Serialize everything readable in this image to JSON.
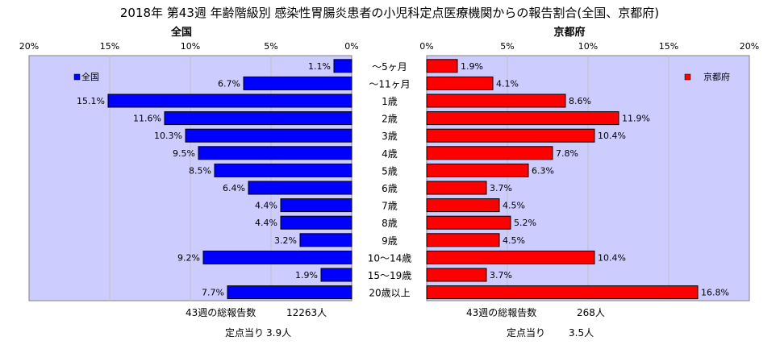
{
  "chart_data": {
    "type": "bar",
    "title": "2018年 第43週 年齢階級別 感染性胃腸炎患者の小児科定点医療機関からの報告割合(全国、京都府)",
    "categories": [
      "～5ヶ月",
      "～11ヶ月",
      "1歳",
      "2歳",
      "3歳",
      "4歳",
      "5歳",
      "6歳",
      "7歳",
      "8歳",
      "9歳",
      "10～14歳",
      "15～19歳",
      "20歳以上"
    ],
    "xlim": [
      0,
      20
    ],
    "axis_ticks": [
      "0%",
      "5%",
      "10%",
      "15%",
      "20%"
    ],
    "grid": true,
    "panels": [
      {
        "side": "left",
        "header": "全国",
        "series": [
          {
            "name": "全国",
            "values": [
              1.1,
              6.7,
              15.1,
              11.6,
              10.3,
              9.5,
              8.5,
              6.4,
              4.4,
              4.4,
              3.2,
              9.2,
              1.9,
              7.7
            ],
            "labels": [
              "1.1%",
              "6.7%",
              "15.1%",
              "11.6%",
              "10.3%",
              "9.5%",
              "8.5%",
              "6.4%",
              "4.4%",
              "4.4%",
              "3.2%",
              "9.2%",
              "1.9%",
              "7.7%"
            ]
          }
        ],
        "legend_placement": "top-left",
        "color": "#0000ff",
        "footer": [
          {
            "label": "43週の総報告数",
            "value": "12263人"
          },
          {
            "label": "定点当り",
            "value": "3.9人"
          }
        ]
      },
      {
        "side": "right",
        "header": "京都府",
        "series": [
          {
            "name": "京都府",
            "values": [
              1.9,
              4.1,
              8.6,
              11.9,
              10.4,
              7.8,
              6.3,
              3.7,
              4.5,
              5.2,
              4.5,
              10.4,
              3.7,
              16.8
            ],
            "labels": [
              "1.9%",
              "4.1%",
              "8.6%",
              "11.9%",
              "10.4%",
              "7.8%",
              "6.3%",
              "3.7%",
              "4.5%",
              "5.2%",
              "4.5%",
              "10.4%",
              "3.7%",
              "16.8%"
            ]
          }
        ],
        "legend_placement": "top-right",
        "color": "#ff0000",
        "footer": [
          {
            "label": "43週の総報告数",
            "value": "268人"
          },
          {
            "label": "定点当り",
            "value": "3.5人"
          }
        ]
      }
    ],
    "colors": {
      "plot_bg": "#ccccff",
      "grid": "#c0c0c0"
    }
  }
}
